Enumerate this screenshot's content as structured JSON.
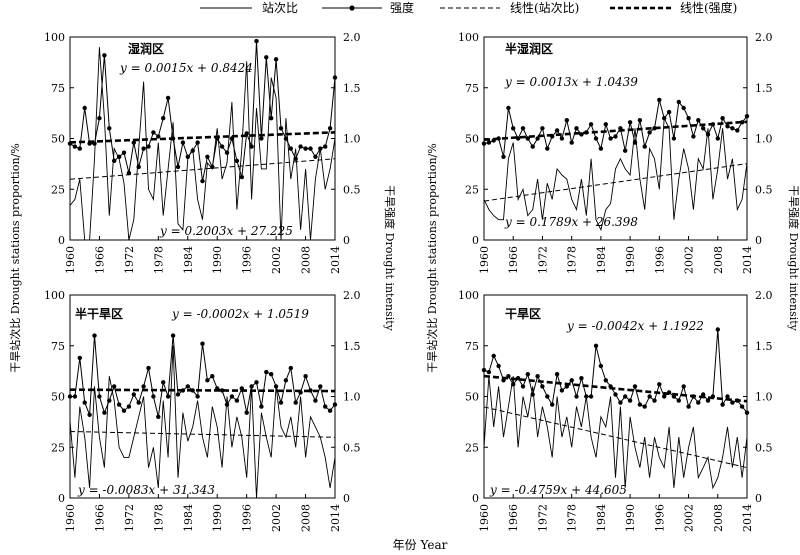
{
  "legend": {
    "items": [
      {
        "label": "站次比",
        "style": "solid-thin"
      },
      {
        "label": "强度",
        "style": "solid-marker"
      },
      {
        "label": "线性(站次比)",
        "style": "dashed-thin"
      },
      {
        "label": "线性(强度)",
        "style": "dashed-thick"
      }
    ]
  },
  "axes_text": {
    "left_y_label": "干旱站次比 Drought stations proportion/%",
    "right_y_label": "干旱强度 Drought intensity",
    "x_label": "年份 Year"
  },
  "chart_data": [
    {
      "type": "line",
      "region": "湿润区",
      "x_ticks": [
        1960,
        1966,
        1972,
        1978,
        1984,
        1990,
        1996,
        2002,
        2008,
        2014
      ],
      "y_left_ticks": [
        0,
        25,
        50,
        75,
        100
      ],
      "y_right_ticks": [
        "0",
        "0.5",
        "1.0",
        "1.5",
        "2.0"
      ],
      "ylim_left": [
        0,
        100
      ],
      "ylim_right": [
        0,
        2.0
      ],
      "xlim": [
        1960,
        2014
      ],
      "proportion_equation": "y = 0.2003x + 27.225",
      "intensity_equation": "y = 0.0015x + 0.8424",
      "proportion_trend": {
        "slope": 0.2003,
        "intercept": 27.225
      },
      "intensity_trend": {
        "slope": 0.0015,
        "intercept": 0.8424
      },
      "proportion": [
        17,
        20,
        30,
        0,
        0,
        40,
        95,
        60,
        12,
        45,
        40,
        28,
        0,
        10,
        45,
        78,
        25,
        20,
        48,
        12,
        35,
        58,
        8,
        5,
        40,
        45,
        20,
        10,
        38,
        35,
        55,
        30,
        38,
        68,
        15,
        45,
        88,
        20,
        65,
        35,
        35,
        80,
        70,
        0,
        60,
        30,
        45,
        5,
        35,
        0,
        30,
        45,
        25,
        35,
        50
      ],
      "intensity": [
        0.95,
        0.92,
        0.9,
        1.3,
        0.95,
        0.95,
        1.2,
        1.82,
        1.1,
        0.78,
        0.82,
        0.86,
        0.66,
        0.96,
        0.72,
        0.9,
        0.92,
        1.06,
        1.02,
        1.2,
        1.4,
        1.0,
        0.72,
        0.96,
        0.82,
        0.88,
        0.96,
        0.58,
        0.82,
        0.72,
        1.0,
        0.92,
        0.86,
        1.0,
        0.78,
        0.62,
        1.05,
        0.92,
        1.96,
        1.0,
        1.8,
        1.2,
        1.78,
        1.1,
        1.0,
        0.9,
        0.8,
        0.92,
        0.9,
        0.9,
        0.82,
        0.9,
        0.92,
        1.1,
        1.6
      ]
    },
    {
      "type": "line",
      "region": "半湿润区",
      "x_ticks": [
        1960,
        1966,
        1972,
        1978,
        1984,
        1990,
        1996,
        2002,
        2008,
        2014
      ],
      "y_left_ticks": [
        0,
        25,
        50,
        75,
        100
      ],
      "y_right_ticks": [
        "0",
        "0.5",
        "1.0",
        "1.5",
        "2.0"
      ],
      "ylim_left": [
        0,
        100
      ],
      "ylim_right": [
        0,
        2.0
      ],
      "xlim": [
        1960,
        2014
      ],
      "proportion_equation": "y = 0.1789x + 26.398",
      "intensity_equation": "y = 0.0013x + 1.0439",
      "proportion": [
        20,
        15,
        12,
        10,
        10,
        40,
        48,
        20,
        25,
        12,
        15,
        30,
        10,
        28,
        20,
        35,
        32,
        30,
        20,
        15,
        30,
        12,
        40,
        10,
        5,
        15,
        18,
        35,
        40,
        35,
        32,
        55,
        30,
        15,
        45,
        40,
        25,
        60,
        55,
        10,
        30,
        45,
        35,
        15,
        40,
        35,
        55,
        20,
        35,
        55,
        30,
        40,
        15,
        20,
        38
      ],
      "intensity": [
        0.95,
        0.96,
        0.98,
        1.0,
        0.82,
        1.3,
        1.1,
        1.0,
        1.1,
        1.0,
        0.92,
        1.0,
        1.1,
        0.9,
        1.02,
        1.08,
        1.0,
        1.18,
        0.96,
        1.1,
        1.04,
        1.06,
        1.14,
        1.0,
        0.9,
        1.14,
        1.0,
        1.02,
        1.1,
        0.88,
        1.16,
        0.96,
        1.18,
        0.92,
        1.06,
        1.1,
        1.38,
        1.2,
        1.26,
        1.0,
        1.36,
        1.3,
        1.2,
        1.02,
        1.18,
        1.1,
        1.04,
        1.14,
        1.0,
        1.2,
        1.12,
        1.1,
        1.08,
        1.16,
        1.22
      ]
    },
    {
      "type": "line",
      "region": "半干旱区",
      "x_ticks": [
        1960,
        1966,
        1972,
        1978,
        1984,
        1990,
        1996,
        2002,
        2008,
        2014
      ],
      "y_left_ticks": [
        0,
        25,
        50,
        75,
        100
      ],
      "y_right_ticks": [
        "0",
        "0.5",
        "1.0",
        "1.5",
        "2.0"
      ],
      "ylim_left": [
        0,
        100
      ],
      "ylim_right": [
        0,
        2.0
      ],
      "xlim": [
        1960,
        2014
      ],
      "proportion_equation": "y = -0.0083x + 31.343",
      "intensity_equation": "y = -0.0002x + 1.0519",
      "proportion": [
        38,
        10,
        45,
        30,
        5,
        55,
        30,
        15,
        60,
        48,
        25,
        20,
        20,
        30,
        40,
        50,
        15,
        25,
        5,
        48,
        20,
        75,
        10,
        42,
        28,
        35,
        48,
        30,
        20,
        45,
        35,
        15,
        50,
        25,
        40,
        30,
        10,
        55,
        0,
        42,
        30,
        20,
        55,
        35,
        30,
        40,
        25,
        50,
        20,
        40,
        35,
        30,
        20,
        5,
        20
      ],
      "intensity": [
        1.0,
        1.0,
        1.38,
        0.94,
        0.82,
        1.6,
        1.0,
        0.84,
        0.96,
        1.1,
        0.92,
        0.86,
        0.9,
        1.02,
        0.94,
        1.1,
        1.28,
        1.0,
        0.8,
        1.14,
        1.0,
        1.6,
        1.02,
        1.06,
        1.1,
        1.06,
        1.0,
        1.52,
        1.16,
        1.2,
        1.08,
        1.06,
        0.92,
        1.0,
        0.96,
        1.08,
        0.84,
        1.1,
        1.14,
        0.9,
        1.24,
        1.22,
        1.1,
        0.94,
        1.16,
        1.28,
        0.94,
        1.04,
        1.2,
        1.06,
        0.96,
        1.1,
        0.9,
        0.86,
        0.92
      ]
    },
    {
      "type": "line",
      "region": "干旱区",
      "x_ticks": [
        1960,
        1966,
        1972,
        1978,
        1984,
        1990,
        1996,
        2002,
        2008,
        2014
      ],
      "y_left_ticks": [
        0,
        25,
        50,
        75,
        100
      ],
      "y_right_ticks": [
        "0",
        "0.5",
        "1.0",
        "1.5",
        "2.0"
      ],
      "ylim_left": [
        0,
        100
      ],
      "ylim_right": [
        0,
        2.0
      ],
      "xlim": [
        1960,
        2014
      ],
      "proportion_equation": "y = -0.4759x + 44.605",
      "intensity_equation": "y = -0.0042x + 1.1922",
      "proportion": [
        25,
        60,
        35,
        55,
        30,
        45,
        60,
        25,
        50,
        40,
        55,
        30,
        45,
        35,
        20,
        50,
        30,
        40,
        25,
        45,
        35,
        50,
        30,
        20,
        40,
        35,
        50,
        10,
        45,
        5,
        40,
        25,
        15,
        30,
        10,
        30,
        20,
        15,
        35,
        5,
        30,
        10,
        25,
        35,
        10,
        15,
        20,
        5,
        10,
        20,
        35,
        15,
        30,
        10,
        30
      ],
      "intensity": [
        1.26,
        1.24,
        1.4,
        1.3,
        1.16,
        1.2,
        1.12,
        1.18,
        1.1,
        1.22,
        1.02,
        1.2,
        1.1,
        1.0,
        0.92,
        1.22,
        1.06,
        1.1,
        1.16,
        1.0,
        1.18,
        1.0,
        1.0,
        1.5,
        1.3,
        1.16,
        1.1,
        1.02,
        0.94,
        1.0,
        0.96,
        1.1,
        0.92,
        0.9,
        1.0,
        0.96,
        1.12,
        1.0,
        1.04,
        1.0,
        0.96,
        1.1,
        0.9,
        1.0,
        0.94,
        1.02,
        0.96,
        1.0,
        1.66,
        0.92,
        1.0,
        0.94,
        0.96,
        0.9,
        0.84
      ]
    }
  ]
}
